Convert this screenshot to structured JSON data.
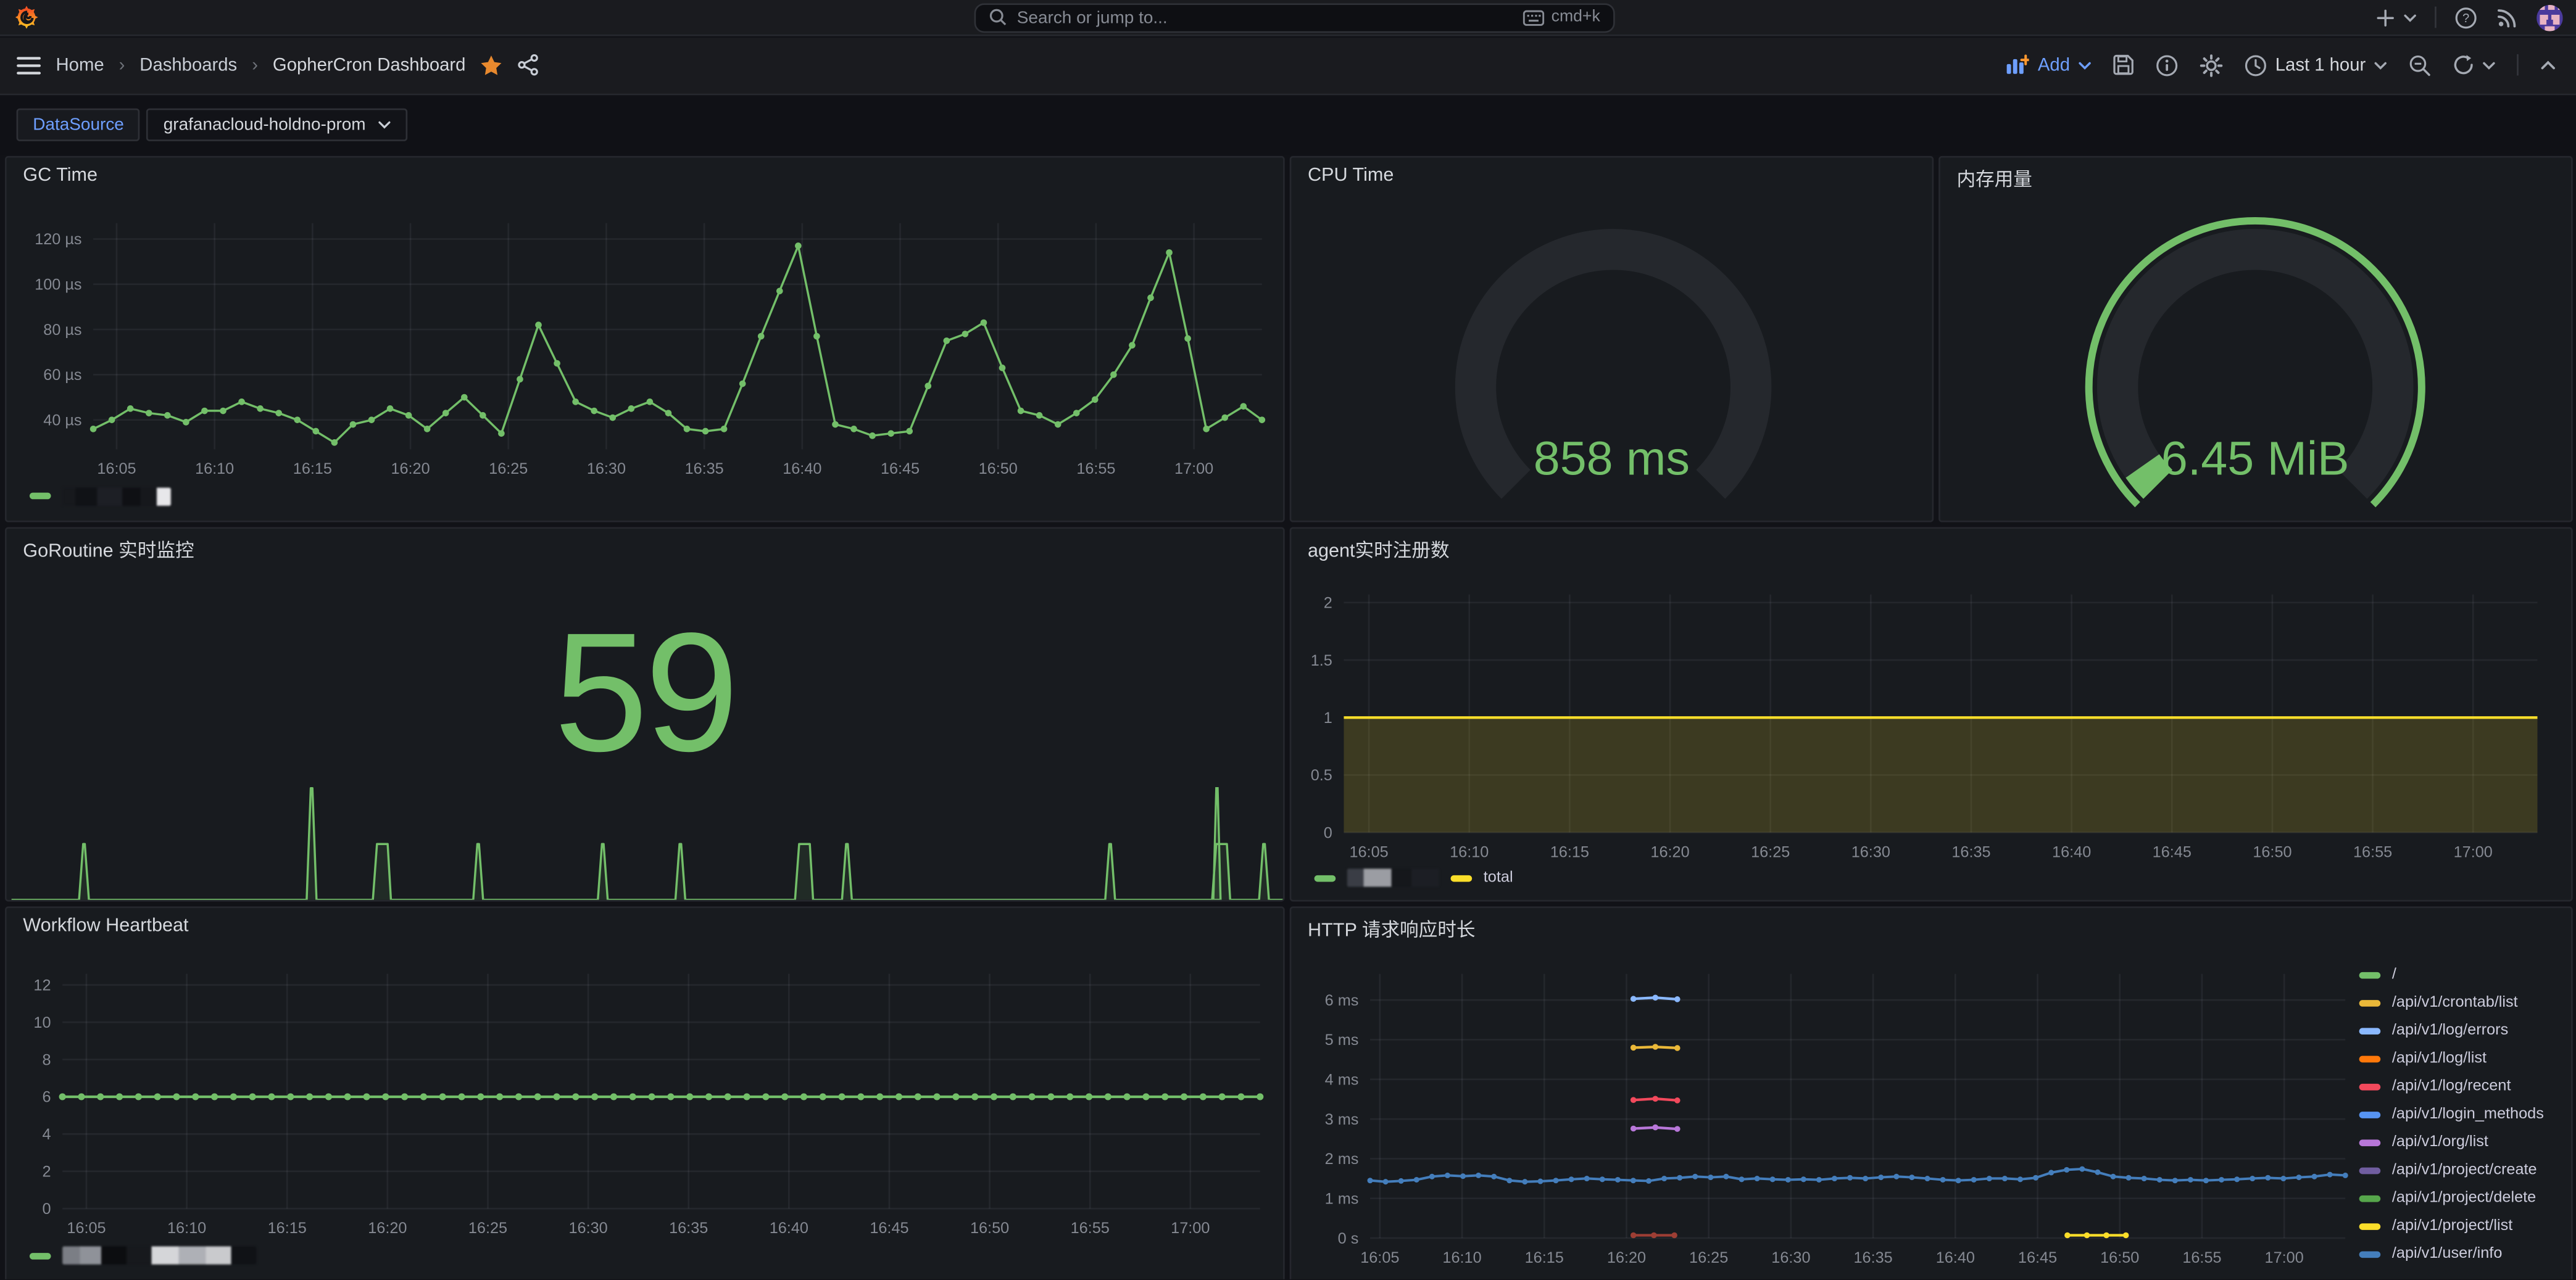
{
  "topbar": {
    "search_placeholder": "Search or jump to...",
    "search_shortcut": "cmd+k"
  },
  "breadcrumb": {
    "items": [
      "Home",
      "Dashboards",
      "GopherCron Dashboard"
    ],
    "separator": "›"
  },
  "toolbar": {
    "add_label": "Add",
    "time_range": "Last 1 hour"
  },
  "variables": {
    "label": "DataSource",
    "value": "grafanacloud-holdno-prom"
  },
  "colors": {
    "green": "#73BF69",
    "yellow": "#FADE2A",
    "accent_blue": "#6E9FFF",
    "panel_bg": "#181B1F",
    "page_bg": "#111217",
    "topbar_bg": "#1A1B1F"
  },
  "chart_data": [
    {
      "id": "gc",
      "type": "line",
      "title": "GC Time",
      "area": {
        "l": 52,
        "t": 40,
        "r": 765,
        "b": 178
      },
      "ylim": [
        27,
        127
      ],
      "y_ticks": [
        {
          "v": 120,
          "label": "120 µs"
        },
        {
          "v": 100,
          "label": "100 µs"
        },
        {
          "v": 80,
          "label": "80 µs"
        },
        {
          "v": 60,
          "label": "60 µs"
        },
        {
          "v": 40,
          "label": "40 µs"
        }
      ],
      "x_ticks": [
        "16:05",
        "16:10",
        "16:15",
        "16:20",
        "16:25",
        "16:30",
        "16:35",
        "16:40",
        "16:45",
        "16:50",
        "16:55",
        "17:00"
      ],
      "x_start": 0.02,
      "x_step": 0.0838,
      "xlab_dy": 15,
      "legend_redacted": true,
      "series": [
        {
          "name": "(redacted)",
          "color": "#73BF69",
          "width": 1.3,
          "markers": true,
          "marker_r": 2,
          "values": [
            36,
            40,
            45,
            43,
            42,
            39,
            44,
            44,
            48,
            45,
            43,
            40,
            35,
            30,
            38,
            40,
            45,
            42,
            36,
            43,
            50,
            42,
            34,
            58,
            82,
            65,
            48,
            44,
            41,
            45,
            48,
            43,
            36,
            35,
            36,
            56,
            77,
            97,
            117,
            77,
            38,
            36,
            33,
            34,
            35,
            55,
            75,
            78,
            83,
            63,
            44,
            42,
            38,
            43,
            49,
            60,
            73,
            94,
            114,
            76,
            36,
            41,
            46,
            40
          ]
        }
      ]
    },
    {
      "id": "cpu",
      "type": "gauge",
      "title": "CPU Time",
      "value": "858 ms",
      "cx": 196,
      "cy": 140,
      "radius": 84,
      "arc_width": 25,
      "fill_deg": 0,
      "threshold_ring": false
    },
    {
      "id": "mem",
      "type": "gauge",
      "title": "内存用量",
      "value": "6.45 MiB",
      "cx": 192,
      "cy": 140,
      "radius": 84,
      "arc_width": 25,
      "fill_deg": 10,
      "threshold_ring": true
    },
    {
      "id": "goroutine",
      "type": "stat",
      "title": "GoRoutine 实时监控",
      "value": "59",
      "spark": {
        "baseline": 226,
        "x0": 3,
        "x1": 777,
        "spikes": [
          {
            "f": 0.057,
            "h": 34
          },
          {
            "f": 0.236,
            "h": 68
          },
          {
            "f": 0.29,
            "h": 34,
            "wide": true
          },
          {
            "f": 0.367,
            "h": 34
          },
          {
            "f": 0.465,
            "h": 34
          },
          {
            "f": 0.526,
            "h": 34
          },
          {
            "f": 0.622,
            "h": 34,
            "wide": true
          },
          {
            "f": 0.657,
            "h": 34
          },
          {
            "f": 0.864,
            "h": 34
          },
          {
            "f": 0.95,
            "h": 34,
            "wide": true
          },
          {
            "f": 0.985,
            "h": 34
          }
        ],
        "needles": [
          {
            "f": 0.948,
            "h": 68
          }
        ]
      }
    },
    {
      "id": "agent",
      "type": "line",
      "title": "agent实时注册数",
      "area": {
        "l": 32,
        "t": 40,
        "r": 759,
        "b": 185
      },
      "ylim": [
        0,
        2.07
      ],
      "y_ticks": [
        {
          "v": 2,
          "label": "2"
        },
        {
          "v": 1.5,
          "label": "1.5"
        },
        {
          "v": 1,
          "label": "1"
        },
        {
          "v": 0.5,
          "label": "0.5"
        },
        {
          "v": 0,
          "label": "0"
        }
      ],
      "x_ticks": [
        "16:05",
        "16:10",
        "16:15",
        "16:20",
        "16:25",
        "16:30",
        "16:35",
        "16:40",
        "16:45",
        "16:50",
        "16:55",
        "17:00"
      ],
      "x_start": 0.021,
      "x_step": 0.0841,
      "xlab_dy": 15,
      "legend_total": "total",
      "legend_redacted": true,
      "series": [
        {
          "name": "total",
          "color": "#FADE2A",
          "width": 1.6,
          "flat": 1,
          "n": 2,
          "fill": 0.16
        }
      ]
    },
    {
      "id": "workflow",
      "type": "line",
      "title": "Workflow Heartbeat",
      "area": {
        "l": 34,
        "t": 40,
        "r": 763,
        "b": 183
      },
      "ylim": [
        0,
        12.6
      ],
      "y_ticks": [
        {
          "v": 12,
          "label": "12"
        },
        {
          "v": 10,
          "label": "10"
        },
        {
          "v": 8,
          "label": "8"
        },
        {
          "v": 6,
          "label": "6"
        },
        {
          "v": 4,
          "label": "4"
        },
        {
          "v": 2,
          "label": "2"
        },
        {
          "v": 0,
          "label": "0"
        }
      ],
      "x_ticks": [
        "16:05",
        "16:10",
        "16:15",
        "16:20",
        "16:25",
        "16:30",
        "16:35",
        "16:40",
        "16:45",
        "16:50",
        "16:55",
        "17:00"
      ],
      "x_start": 0.02,
      "x_step": 0.0838,
      "xlab_dy": 15,
      "legend_redacted": true,
      "series": [
        {
          "name": "(redacted)",
          "color": "#73BF69",
          "width": 1.6,
          "flat": 6,
          "n": 64,
          "markers": true,
          "marker_r": 2.1
        }
      ]
    },
    {
      "id": "http",
      "type": "line",
      "title": "HTTP 请求响应时长",
      "area": {
        "l": 48,
        "t": 40,
        "r": 642,
        "b": 201
      },
      "ylim": [
        0,
        6.66
      ],
      "y_ticks": [
        {
          "v": 6,
          "label": "6 ms"
        },
        {
          "v": 5,
          "label": "5 ms"
        },
        {
          "v": 4,
          "label": "4 ms"
        },
        {
          "v": 3,
          "label": "3 ms"
        },
        {
          "v": 2,
          "label": "2 ms"
        },
        {
          "v": 1,
          "label": "1 ms"
        },
        {
          "v": 0,
          "label": "0 s"
        }
      ],
      "x_ticks": [
        "16:05",
        "16:10",
        "16:15",
        "16:20",
        "16:25",
        "16:30",
        "16:35",
        "16:40",
        "16:45",
        "16:50",
        "16:55",
        "17:00"
      ],
      "x_start": 0.01,
      "x_step": 0.0843,
      "xlab_dy": 15,
      "series": [
        {
          "name": "/",
          "color": "#73BF69"
        },
        {
          "name": "/api/v1/crontab/list",
          "color": "#EAB839",
          "width": 1.6,
          "markers": true,
          "marker_r": 1.8,
          "seg": [
            0.27,
            0.315
          ],
          "values": [
            4.8,
            4.82,
            4.79
          ]
        },
        {
          "name": "/api/v1/log/errors",
          "color": "#8AB8FF",
          "width": 1.6,
          "markers": true,
          "marker_r": 1.8,
          "seg": [
            0.27,
            0.315
          ],
          "values": [
            6.03,
            6.06,
            6.02
          ]
        },
        {
          "name": "/api/v1/log/list",
          "color": "#FF780A"
        },
        {
          "name": "/api/v1/log/recent",
          "color": "#F2495C",
          "width": 1.6,
          "markers": true,
          "marker_r": 1.8,
          "seg": [
            0.27,
            0.315
          ],
          "values": [
            3.48,
            3.51,
            3.47
          ]
        },
        {
          "name": "/api/v1/login_methods",
          "color": "#5794F2"
        },
        {
          "name": "/api/v1/org/list",
          "color": "#B877D9",
          "width": 1.6,
          "markers": true,
          "marker_r": 1.8,
          "seg": [
            0.27,
            0.315
          ],
          "values": [
            2.76,
            2.79,
            2.75
          ]
        },
        {
          "name": "/api/v1/project/create",
          "color": "#705DA0"
        },
        {
          "name": "/api/v1/project/delete",
          "color": "#56A64B"
        },
        {
          "name": "/api/v1/project/list",
          "color": "#FADE2A",
          "width": 1.6,
          "markers": true,
          "marker_r": 1.8,
          "seg": [
            0.715,
            0.775
          ],
          "values": [
            0.07,
            0.07,
            0.07,
            0.07
          ]
        },
        {
          "name": "/api/v1/user/info",
          "color": "#447EBC",
          "width": 1.5,
          "markers": true,
          "marker_r": 1.7,
          "values": [
            1.45,
            1.42,
            1.44,
            1.47,
            1.55,
            1.58,
            1.56,
            1.58,
            1.55,
            1.45,
            1.42,
            1.43,
            1.45,
            1.48,
            1.5,
            1.48,
            1.47,
            1.45,
            1.44,
            1.5,
            1.52,
            1.55,
            1.53,
            1.55,
            1.48,
            1.5,
            1.48,
            1.47,
            1.48,
            1.47,
            1.5,
            1.52,
            1.5,
            1.53,
            1.55,
            1.53,
            1.5,
            1.47,
            1.45,
            1.47,
            1.5,
            1.5,
            1.48,
            1.52,
            1.65,
            1.72,
            1.74,
            1.66,
            1.55,
            1.52,
            1.5,
            1.47,
            1.45,
            1.47,
            1.45,
            1.47,
            1.48,
            1.5,
            1.52,
            1.5,
            1.53,
            1.55,
            1.6,
            1.58
          ]
        },
        {
          "name": "",
          "legend": false,
          "color": "#9D3E34",
          "width": 1.6,
          "markers": true,
          "marker_r": 1.8,
          "seg": [
            0.27,
            0.312
          ],
          "values": [
            0.07,
            0.07,
            0.07
          ]
        }
      ]
    }
  ]
}
